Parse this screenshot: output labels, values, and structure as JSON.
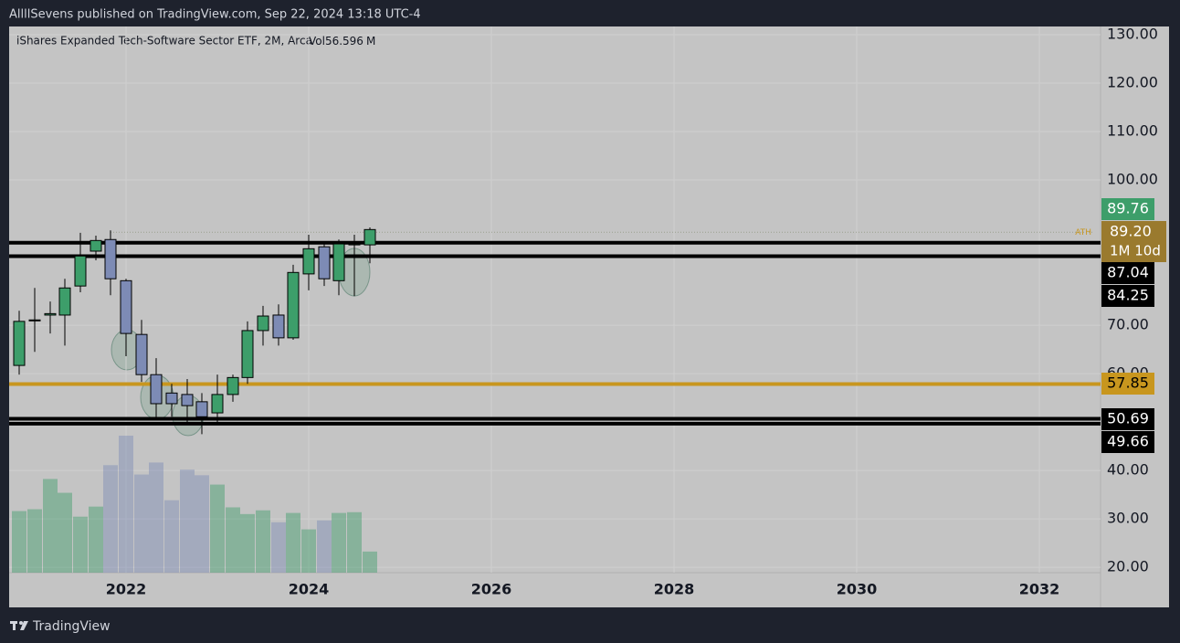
{
  "header": "AllllSevens published on TradingView.com, Sep 22, 2024 13:18 UTC-4",
  "footer": "TradingView",
  "chart_data": {
    "type": "candlestick",
    "title": "iShares Expanded Tech-Software Sector ETF, 2M, Arca",
    "volume_label": "Vol",
    "volume_unit": "M",
    "x": [
      2020.83,
      2021.0,
      2021.17,
      2021.33,
      2021.5,
      2021.67,
      2021.83,
      2022.0,
      2022.17,
      2022.33,
      2022.5,
      2022.67,
      2022.83,
      2023.0,
      2023.17,
      2023.33,
      2023.5,
      2023.67,
      2023.83,
      2024.0,
      2024.17,
      2024.33,
      2024.5,
      2024.67
    ],
    "open": [
      61.7,
      70.9,
      72.1,
      72.1,
      78.1,
      85.3,
      87.7,
      79.2,
      68.1,
      59.8,
      56.0,
      55.7,
      54.2,
      51.9,
      55.7,
      59.2,
      68.9,
      72.1,
      67.4,
      80.6,
      86.2,
      79.2,
      86.6,
      86.6
    ],
    "high": [
      73.0,
      77.7,
      74.9,
      79.6,
      89.1,
      88.5,
      89.6,
      79.6,
      71.1,
      63.2,
      57.9,
      58.9,
      56.0,
      59.8,
      59.8,
      70.8,
      74.0,
      74.3,
      82.5,
      88.7,
      87.2,
      87.7,
      88.7,
      90.2
    ],
    "low": [
      59.8,
      64.5,
      68.3,
      65.8,
      76.8,
      83.4,
      76.2,
      63.6,
      58.3,
      50.8,
      51.1,
      50.0,
      47.5,
      49.8,
      54.2,
      57.9,
      65.8,
      65.8,
      67.0,
      77.2,
      78.1,
      76.2,
      76.0,
      82.8
    ],
    "close": [
      70.8,
      71.1,
      72.4,
      77.7,
      84.3,
      87.5,
      79.6,
      68.3,
      59.8,
      53.8,
      53.8,
      53.4,
      51.1,
      55.7,
      59.2,
      68.9,
      71.9,
      67.4,
      80.9,
      85.8,
      79.6,
      86.8,
      86.8,
      89.76
    ],
    "volume": [
      165,
      170,
      251,
      214,
      150,
      177,
      288,
      367,
      263,
      295,
      194,
      276,
      261,
      236,
      175,
      157,
      167,
      135,
      160,
      116,
      140,
      160,
      162,
      56.596
    ],
    "up_color": "#3d9e6a",
    "down_color": "#7d8bb5",
    "levels": [
      {
        "value": 87.04,
        "color": "#000000"
      },
      {
        "value": 84.25,
        "color": "#000000"
      },
      {
        "value": 57.85,
        "color": "#c8961e"
      },
      {
        "value": 50.69,
        "color": "#000000"
      },
      {
        "value": 49.66,
        "color": "#000000"
      }
    ],
    "ath": {
      "value": 89.2,
      "label": "89.20",
      "text": "ATH",
      "countdown": "1M 10d",
      "color": "#9a7a2e"
    },
    "ylim": [
      18.9,
      131.7
    ],
    "yticks": [
      {
        "value": 20,
        "label": "20.00"
      },
      {
        "value": 30,
        "label": "30.00"
      },
      {
        "value": 40,
        "label": "40.00"
      },
      {
        "value": 60,
        "label": "60.00"
      },
      {
        "value": 70,
        "label": "70.00"
      },
      {
        "value": 100,
        "label": "100.00"
      },
      {
        "value": 110,
        "label": "110.00"
      },
      {
        "value": 120,
        "label": "120.00"
      },
      {
        "value": 130,
        "label": "130.00"
      }
    ],
    "xlim": [
      2020.72,
      2032.67
    ],
    "xticks": [
      2022,
      2024,
      2026,
      2028,
      2030,
      2032
    ],
    "grid": true
  }
}
